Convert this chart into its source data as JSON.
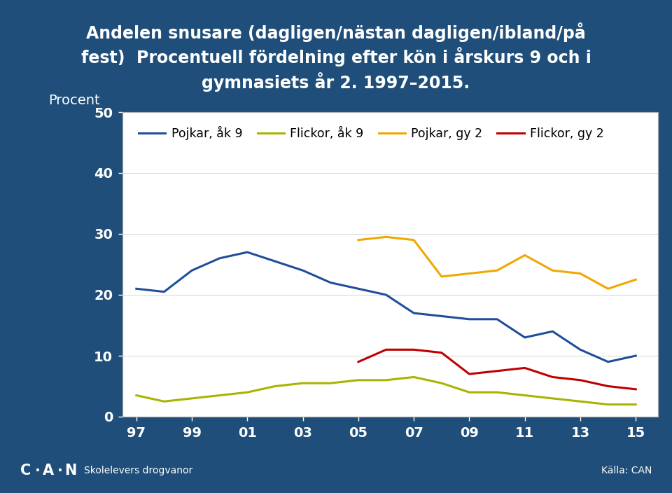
{
  "title_line1": "Andelen snusare (dagligen/nästan dagligen/ibland/på",
  "title_line2": "fest)  Procentuell fördelning efter kön i årskurs 9 och i",
  "title_line3": "gymnasiets år 2. 1997–2015.",
  "ylabel": "Procent",
  "background_color": "#1e4e79",
  "plot_bg_color": "#ffffff",
  "text_color": "#ffffff",
  "x_ticks": [
    97,
    99,
    101,
    103,
    105,
    107,
    109,
    111,
    113,
    115
  ],
  "x_tick_labels": [
    "97",
    "99",
    "01",
    "03",
    "05",
    "07",
    "09",
    "11",
    "13",
    "15"
  ],
  "y_ticks": [
    0,
    10,
    20,
    30,
    40,
    50
  ],
  "xlim": [
    96.5,
    115.8
  ],
  "ylim": [
    0,
    50
  ],
  "x_pak9": [
    97,
    98,
    99,
    100,
    101,
    102,
    103,
    104,
    105,
    106,
    107,
    108,
    109,
    110,
    111,
    112,
    113,
    114,
    115
  ],
  "y_pak9": [
    21,
    20.5,
    24,
    26,
    27,
    25.5,
    24,
    22,
    21,
    20,
    17,
    16.5,
    16,
    16,
    13,
    14,
    11,
    9,
    10
  ],
  "x_fak9": [
    97,
    98,
    99,
    100,
    101,
    102,
    103,
    104,
    105,
    106,
    107,
    108,
    109,
    110,
    111,
    112,
    113,
    114,
    115
  ],
  "y_fak9": [
    3.5,
    2.5,
    3,
    3.5,
    4,
    5,
    5.5,
    5.5,
    6,
    6,
    6.5,
    5.5,
    4,
    4,
    3.5,
    3,
    2.5,
    2,
    2
  ],
  "x_pgy2": [
    105,
    106,
    107,
    108,
    109,
    110,
    111,
    112,
    113,
    114,
    115
  ],
  "y_pgy2": [
    29,
    29.5,
    29,
    23,
    23.5,
    24,
    26.5,
    24,
    23.5,
    21,
    22.5
  ],
  "x_fgy2": [
    105,
    106,
    107,
    108,
    109,
    110,
    111,
    112,
    113,
    114,
    115
  ],
  "y_fgy2": [
    9,
    11,
    11,
    10.5,
    7,
    7.5,
    8,
    6.5,
    6,
    5,
    4.5
  ],
  "color_pak9": "#1f4e9a",
  "color_fak9": "#a8b400",
  "color_pgy2": "#f0a800",
  "color_fgy2": "#c00000",
  "legend_labels": [
    "Pojkar, åk 9",
    "Flickor, åk 9",
    "Pojkar, gy 2",
    "Flickor, gy 2"
  ],
  "footer_left": "Skolelevers drogvanor",
  "footer_right": "Källa: CAN",
  "lw": 2.2,
  "title_fontsize": 17,
  "tick_fontsize": 14,
  "legend_fontsize": 12.5
}
